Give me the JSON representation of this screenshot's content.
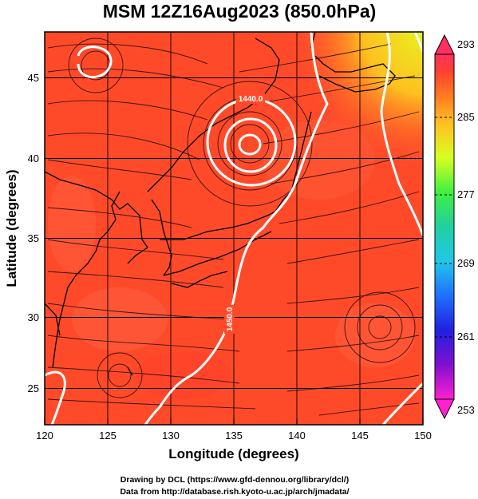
{
  "title": "MSM 12Z16Aug2023 (850.0hPa)",
  "chart_data": {
    "type": "heatmap",
    "title": "MSM 12Z16Aug2023 (850.0hPa)",
    "xlabel": "Longitude (degrees)",
    "ylabel": "Latitude  (degrees)",
    "xlim": [
      120,
      150
    ],
    "ylim": [
      22.4,
      47.6
    ],
    "x_ticks": [
      "120",
      "125",
      "130",
      "135",
      "140",
      "145",
      "150"
    ],
    "y_ticks": [
      "25",
      "30",
      "35",
      "40",
      "45"
    ],
    "grid": true,
    "colorbar": {
      "min": 253,
      "max": 293,
      "ticks": [
        "293",
        "285",
        "277",
        "269",
        "261",
        "253"
      ],
      "colors": [
        "#ff2f60",
        "#ff4030",
        "#ff7a20",
        "#ffc020",
        "#d8ff20",
        "#40f040",
        "#20d0a0",
        "#20c8e8",
        "#2070ff",
        "#2020e0",
        "#8010d0",
        "#ff20d0"
      ]
    },
    "field": "temperature (shading), streamlines (wind), geopotential height contours (white)",
    "contour_labels": [
      "1440.0",
      "1450.0"
    ],
    "typhoon_center": {
      "lon": 136.3,
      "lat": 41.2
    }
  },
  "credits": {
    "line1": "Drawing by DCL (https://www.gfd-dennou.org/library/dcl/)",
    "line2": "Data from http://database.rish.kyoto-u.ac.jp/arch/jmadata/"
  }
}
